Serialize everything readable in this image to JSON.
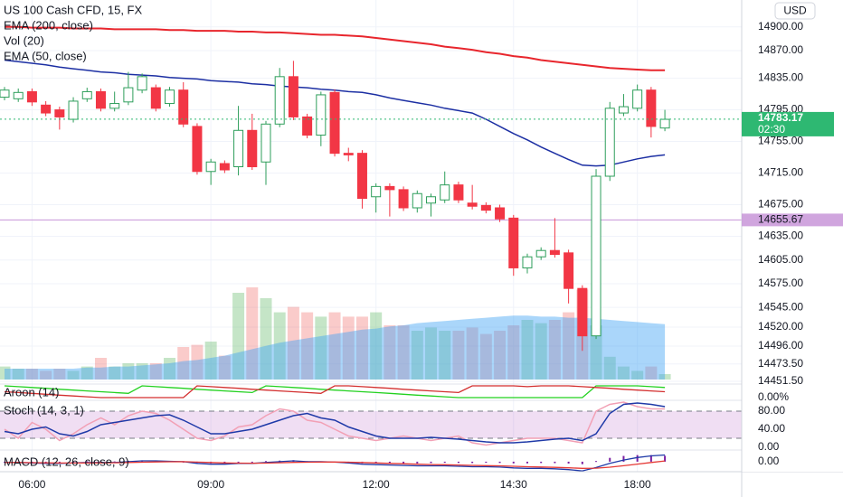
{
  "chart_data": [
    {
      "type": "candlestick",
      "title": "US 100 Cash CFD, 15, FX",
      "currency": "USD",
      "categories": [
        null,
        null,
        "06:00",
        null,
        null,
        null,
        null,
        null,
        null,
        null,
        null,
        null,
        null,
        null,
        null,
        "09:00",
        null,
        null,
        null,
        null,
        null,
        null,
        null,
        null,
        null,
        null,
        null,
        "12:00",
        null,
        null,
        null,
        null,
        null,
        null,
        null,
        null,
        null,
        "14:30",
        null,
        null,
        null,
        null,
        null,
        null,
        null,
        null,
        "18:00",
        null,
        null
      ],
      "open": [
        14811,
        14809,
        14818,
        14801,
        14795,
        14783,
        14809,
        14818,
        14797,
        14805,
        14820,
        14823,
        14803,
        14820,
        14774,
        14717,
        14727,
        14723,
        14769,
        14729,
        14777,
        14837,
        14786,
        14763,
        14817,
        14740,
        14740,
        14685,
        14698,
        14694,
        14671,
        14677,
        14681,
        14700,
        14677,
        14674,
        14671,
        14658,
        14595,
        14609,
        14617,
        14614,
        14569,
        14509,
        14711,
        14791,
        14797,
        14820,
        14772
      ],
      "high": [
        14824,
        14822,
        14822,
        14806,
        14799,
        14811,
        14823,
        14822,
        14818,
        14843,
        14841,
        14827,
        14824,
        14830,
        14778,
        14733,
        14731,
        14800,
        14790,
        14781,
        14848,
        14857,
        14790,
        14818,
        14821,
        14747,
        14744,
        14702,
        14702,
        14698,
        14693,
        14689,
        14717,
        14704,
        14700,
        14678,
        14675,
        14662,
        14613,
        14621,
        14658,
        14618,
        14573,
        14720,
        14805,
        14815,
        14827,
        14824,
        14795
      ],
      "low": [
        14807,
        14805,
        14800,
        14787,
        14770,
        14779,
        14805,
        14793,
        14793,
        14801,
        14816,
        14793,
        14799,
        14773,
        14713,
        14700,
        14715,
        14712,
        14719,
        14700,
        14773,
        14782,
        14759,
        14749,
        14736,
        14730,
        14670,
        14665,
        14660,
        14667,
        14665,
        14660,
        14677,
        14677,
        14669,
        14664,
        14653,
        14585,
        14588,
        14605,
        14608,
        14550,
        14490,
        14505,
        14705,
        14787,
        14793,
        14760,
        14768
      ],
      "close": [
        14820,
        14817,
        14805,
        14791,
        14786,
        14806,
        14818,
        14797,
        14803,
        14823,
        14837,
        14797,
        14820,
        14777,
        14717,
        14729,
        14719,
        14769,
        14723,
        14777,
        14837,
        14786,
        14763,
        14814,
        14740,
        14738,
        14683,
        14698,
        14694,
        14671,
        14689,
        14685,
        14700,
        14681,
        14673,
        14668,
        14657,
        14595,
        14609,
        14617,
        14612,
        14569,
        14509,
        14711,
        14797,
        14799,
        14820,
        14774,
        14783
      ],
      "up_color": "#2e9e5b",
      "down_color": "#f23645",
      "ylim": [
        14448,
        14934
      ],
      "yticks": [
        {
          "value": 14900,
          "label": "14900.00"
        },
        {
          "value": 14870,
          "label": "14870.00"
        },
        {
          "value": 14835,
          "label": "14835.00"
        },
        {
          "value": 14795,
          "label": "14795.00"
        },
        {
          "value": 14755,
          "label": "14755.00"
        },
        {
          "value": 14715,
          "label": "14715.00"
        },
        {
          "value": 14675,
          "label": "14675.00"
        },
        {
          "value": 14635,
          "label": "14635.00"
        },
        {
          "value": 14605,
          "label": "14605.00"
        },
        {
          "value": 14575,
          "label": "14575.00"
        },
        {
          "value": 14545,
          "label": "14545.00"
        },
        {
          "value": 14520,
          "label": "14520.00"
        },
        {
          "value": 14496,
          "label": "14496.00"
        },
        {
          "value": 14473.5,
          "label": "14473.50"
        },
        {
          "value": 14451.5,
          "label": "14451.50"
        }
      ],
      "grid": true,
      "series": [
        {
          "name": "EMA (200, close)",
          "color": "#e8262d",
          "values": [
            14900,
            14900,
            14899,
            14899,
            14899,
            14898,
            14898,
            14898,
            14897,
            14897,
            14897,
            14897,
            14896,
            14896,
            14895,
            14895,
            14895,
            14894,
            14894,
            14893,
            14893,
            14892,
            14891,
            14890,
            14890,
            14889,
            14888,
            14886,
            14884,
            14882,
            14880,
            14878,
            14875,
            14873,
            14871,
            14868,
            14866,
            14863,
            14861,
            14858,
            14856,
            14854,
            14852,
            14850,
            14848,
            14847,
            14846,
            14845,
            14845
          ]
        },
        {
          "name": "EMA (50, close)",
          "color": "#1c2fa3",
          "values": [
            14858,
            14856,
            14854,
            14852,
            14849,
            14847,
            14845,
            14843,
            14842,
            14840,
            14839,
            14838,
            14836,
            14835,
            14834,
            14832,
            14831,
            14830,
            14828,
            14827,
            14825,
            14824,
            14823,
            14821,
            14820,
            14818,
            14817,
            14814,
            14810,
            14807,
            14804,
            14801,
            14797,
            14794,
            14791,
            14783,
            14774,
            14765,
            14757,
            14748,
            14740,
            14732,
            14725,
            14724,
            14725,
            14729,
            14733,
            14736,
            14738
          ]
        }
      ],
      "volume": {
        "name": "Vol (20)",
        "lim": [
          0,
          100
        ],
        "up_color": "rgba(76,175,80,0.32)",
        "down_color": "rgba(239,83,80,0.3)",
        "ma_color": "rgba(66,165,245,0.45)",
        "values": [
          12,
          10,
          10,
          8,
          10,
          8,
          12,
          20,
          12,
          15,
          15,
          15,
          20,
          30,
          32,
          35,
          22,
          80,
          85,
          75,
          62,
          67,
          62,
          58,
          62,
          58,
          58,
          62,
          50,
          50,
          45,
          48,
          45,
          45,
          48,
          42,
          45,
          50,
          55,
          52,
          55,
          62,
          83,
          50,
          21,
          12,
          8,
          12,
          5
        ],
        "ma": [
          10,
          10,
          10,
          10,
          10,
          10,
          11,
          11,
          12,
          12,
          13,
          14,
          15,
          17,
          18,
          20,
          22,
          25,
          28,
          31,
          34,
          36,
          38,
          40,
          42,
          44,
          46,
          47,
          49,
          50,
          52,
          53,
          54,
          55,
          56,
          57,
          58,
          59,
          59,
          58,
          58,
          57,
          57,
          56,
          55,
          54,
          53,
          52,
          51
        ]
      },
      "price_line": {
        "value": 14783.17,
        "label": "14783.17",
        "countdown": "02:30",
        "color": "#2eb872"
      },
      "level_line": {
        "value": 14655.67,
        "label": "14655.67",
        "color": "#c895d8"
      }
    },
    {
      "type": "aroon",
      "name": "Aroon (14)",
      "ylim": [
        -15,
        100
      ],
      "yticks": [
        {
          "value": 0,
          "label": "0.00%"
        }
      ],
      "series": [
        {
          "color": "#22d11f",
          "values": [
            100,
            93,
            86,
            79,
            71,
            64,
            57,
            50,
            43,
            36,
            100,
            93,
            86,
            79,
            71,
            64,
            57,
            50,
            43,
            100,
            93,
            86,
            79,
            71,
            64,
            57,
            50,
            43,
            36,
            29,
            21,
            14,
            7,
            0,
            0,
            0,
            0,
            0,
            0,
            0,
            0,
            0,
            0,
            100,
            100,
            100,
            100,
            93,
            86
          ]
        },
        {
          "color": "#d32f2f",
          "values": [
            50,
            43,
            36,
            29,
            21,
            14,
            7,
            0,
            0,
            0,
            0,
            0,
            0,
            0,
            100,
            93,
            86,
            79,
            71,
            64,
            57,
            50,
            43,
            36,
            100,
            100,
            93,
            86,
            79,
            71,
            64,
            57,
            50,
            43,
            100,
            100,
            100,
            100,
            93,
            100,
            100,
            100,
            93,
            86,
            79,
            71,
            64,
            57,
            50
          ]
        }
      ]
    },
    {
      "type": "stoch",
      "name": "Stoch (14, 3, 1)",
      "ylim": [
        -6,
        104
      ],
      "band": [
        20,
        80
      ],
      "band_color": "rgba(171,71,188,0.18)",
      "yticks": [
        {
          "value": 80,
          "label": "80.00"
        },
        {
          "value": 40,
          "label": "40.00"
        },
        {
          "value": 0,
          "label": "0.00"
        }
      ],
      "series": [
        {
          "color": "#f2a0b5",
          "values": [
            40,
            20,
            55,
            40,
            15,
            30,
            50,
            65,
            50,
            70,
            80,
            75,
            60,
            40,
            20,
            15,
            25,
            45,
            50,
            70,
            85,
            80,
            60,
            55,
            40,
            25,
            20,
            15,
            20,
            25,
            20,
            15,
            20,
            25,
            10,
            5,
            10,
            15,
            20,
            20,
            20,
            15,
            10,
            80,
            95,
            100,
            90,
            85,
            85
          ]
        },
        {
          "color": "#1f3aa8",
          "values": [
            35,
            30,
            40,
            45,
            30,
            25,
            35,
            50,
            55,
            60,
            65,
            70,
            72,
            60,
            45,
            30,
            30,
            35,
            40,
            50,
            60,
            70,
            75,
            65,
            60,
            45,
            35,
            25,
            20,
            20,
            20,
            22,
            20,
            18,
            15,
            12,
            10,
            10,
            12,
            15,
            18,
            20,
            15,
            30,
            75,
            95,
            98,
            95,
            90
          ]
        }
      ]
    },
    {
      "type": "macd",
      "name": "MACD (12, 26, close, 9)",
      "ylim": [
        -12,
        14
      ],
      "yticks": [
        {
          "value": 0,
          "label": "0.00"
        }
      ],
      "histogram_color": "#7b1fa2",
      "histogram": [
        0,
        0,
        -0.3,
        -0.6,
        -0.4,
        0.1,
        0.5,
        0.4,
        0.3,
        1,
        1.6,
        1.3,
        0.6,
        0,
        -1.5,
        -2,
        -1.5,
        -0.3,
        -0.2,
        0.7,
        1.3,
        1.8,
        0.6,
        0.4,
        -0.1,
        -0.9,
        -2,
        -2,
        -2,
        -2,
        -2,
        -1.6,
        -1.3,
        -1.5,
        -1.6,
        -1.3,
        -1.5,
        -2,
        -2,
        -1.6,
        -1.7,
        -2.2,
        -3,
        0.8,
        4.6,
        6.9,
        7.9,
        7.9,
        7.1
      ],
      "series": [
        {
          "color": "#1f3aa8",
          "values": [
            -1,
            -1,
            -1.5,
            -2,
            -2,
            -1.5,
            -1,
            -1,
            -1,
            0,
            1,
            1,
            0.5,
            0,
            -2,
            -3,
            -3,
            -2,
            -2,
            -1,
            0,
            1,
            0,
            0,
            -0.5,
            -1.5,
            -3,
            -3.5,
            -4,
            -4.5,
            -5,
            -5,
            -5,
            -5.5,
            -6,
            -6,
            -6.5,
            -7.5,
            -8,
            -8,
            -8.5,
            -9.5,
            -11,
            -7,
            -2,
            2,
            5,
            7,
            8
          ]
        },
        {
          "color": "#e53935",
          "values": [
            -1,
            -1,
            -1.2,
            -1.4,
            -1.6,
            -1.6,
            -1.5,
            -1.4,
            -1.3,
            -1,
            -0.6,
            -0.3,
            -0.1,
            0,
            -0.5,
            -1,
            -1.5,
            -1.7,
            -1.8,
            -1.7,
            -1.3,
            -0.8,
            -0.6,
            -0.4,
            -0.4,
            -0.6,
            -1,
            -1.5,
            -2,
            -2.5,
            -3,
            -3.4,
            -3.7,
            -4,
            -4.4,
            -4.7,
            -5,
            -5.5,
            -6,
            -6.4,
            -6.8,
            -7.3,
            -8,
            -7.8,
            -6.6,
            -4.9,
            -2.9,
            -0.9,
            0.9
          ]
        }
      ]
    }
  ]
}
